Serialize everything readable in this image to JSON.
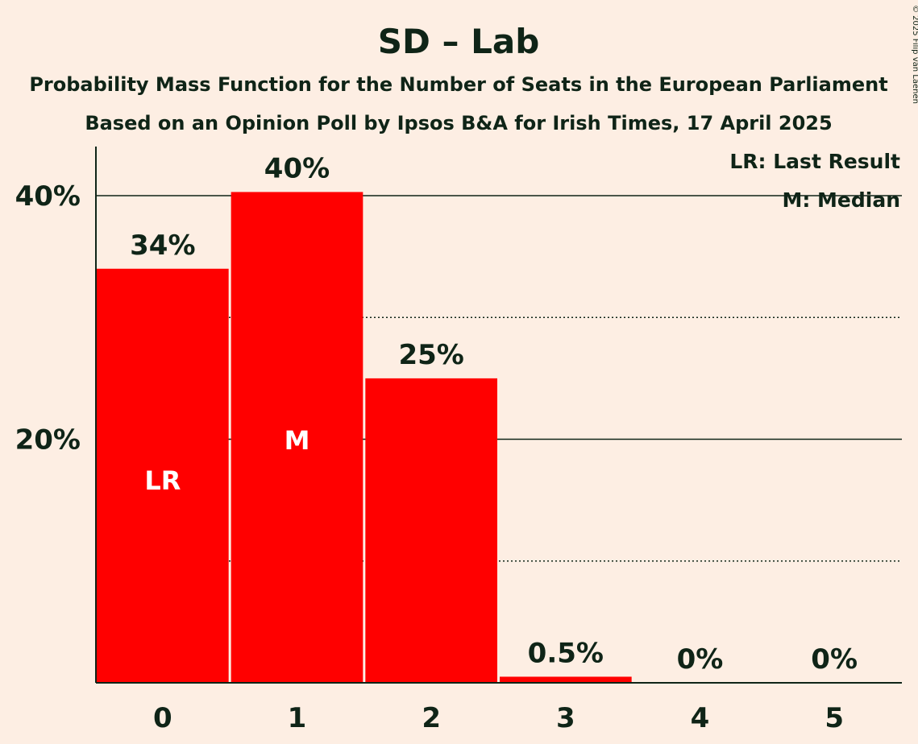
{
  "chart_data": {
    "type": "bar",
    "title": "SD – Lab",
    "subtitle_1": "Probability Mass Function for the Number of Seats in the European Parliament",
    "subtitle_2": "Based on an Opinion Poll by Ipsos B&A for Irish Times, 17 April 2025",
    "categories": [
      "0",
      "1",
      "2",
      "3",
      "4",
      "5"
    ],
    "values": [
      34,
      40.3,
      25,
      0.5,
      0,
      0
    ],
    "value_labels": [
      "34%",
      "40%",
      "25%",
      "0.5%",
      "0%",
      "0%"
    ],
    "bar_marks": [
      "LR",
      "M",
      "",
      "",
      "",
      ""
    ],
    "ylim": [
      0,
      44
    ],
    "yticks": [
      {
        "value": 20,
        "label": "20%"
      },
      {
        "value": 40,
        "label": "40%"
      }
    ],
    "gridlines": {
      "solid": [
        20,
        40
      ],
      "dotted": [
        10,
        30
      ]
    },
    "legend": {
      "placement": "top-right",
      "items": [
        "LR: Last Result",
        "M: Median"
      ]
    },
    "bar_color": "#FF0000",
    "background_color": "#FDEEE3",
    "text_color": "#0F2417"
  },
  "copyright": "© 2025 Filip van Laenen"
}
